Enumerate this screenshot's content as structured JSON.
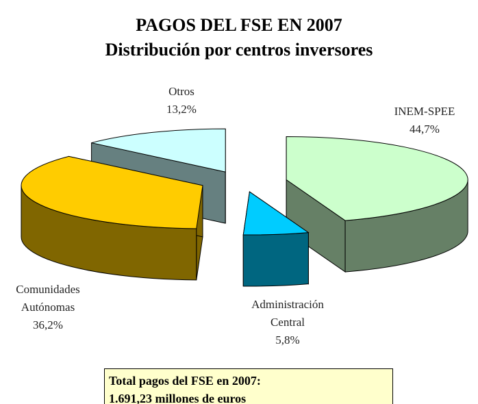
{
  "chart_data": {
    "type": "pie3d",
    "title": "PAGOS DEL FSE EN 2007",
    "subtitle": "Distribución por centros inversores",
    "categories": [
      "INEM-SPEE",
      "Administración Central",
      "Comunidades Autónomas",
      "Otros"
    ],
    "values": [
      44.7,
      5.8,
      36.2,
      13.2
    ],
    "value_labels": [
      "44,7%",
      "5,8%",
      "36,2%",
      "13,2%"
    ],
    "colors": [
      "#ccffcc",
      "#00ccff",
      "#ffcc00",
      "#ccffff"
    ],
    "annotations": [
      "Total pagos del FSE en 2007:",
      "1.691,23 millones de euros"
    ]
  }
}
